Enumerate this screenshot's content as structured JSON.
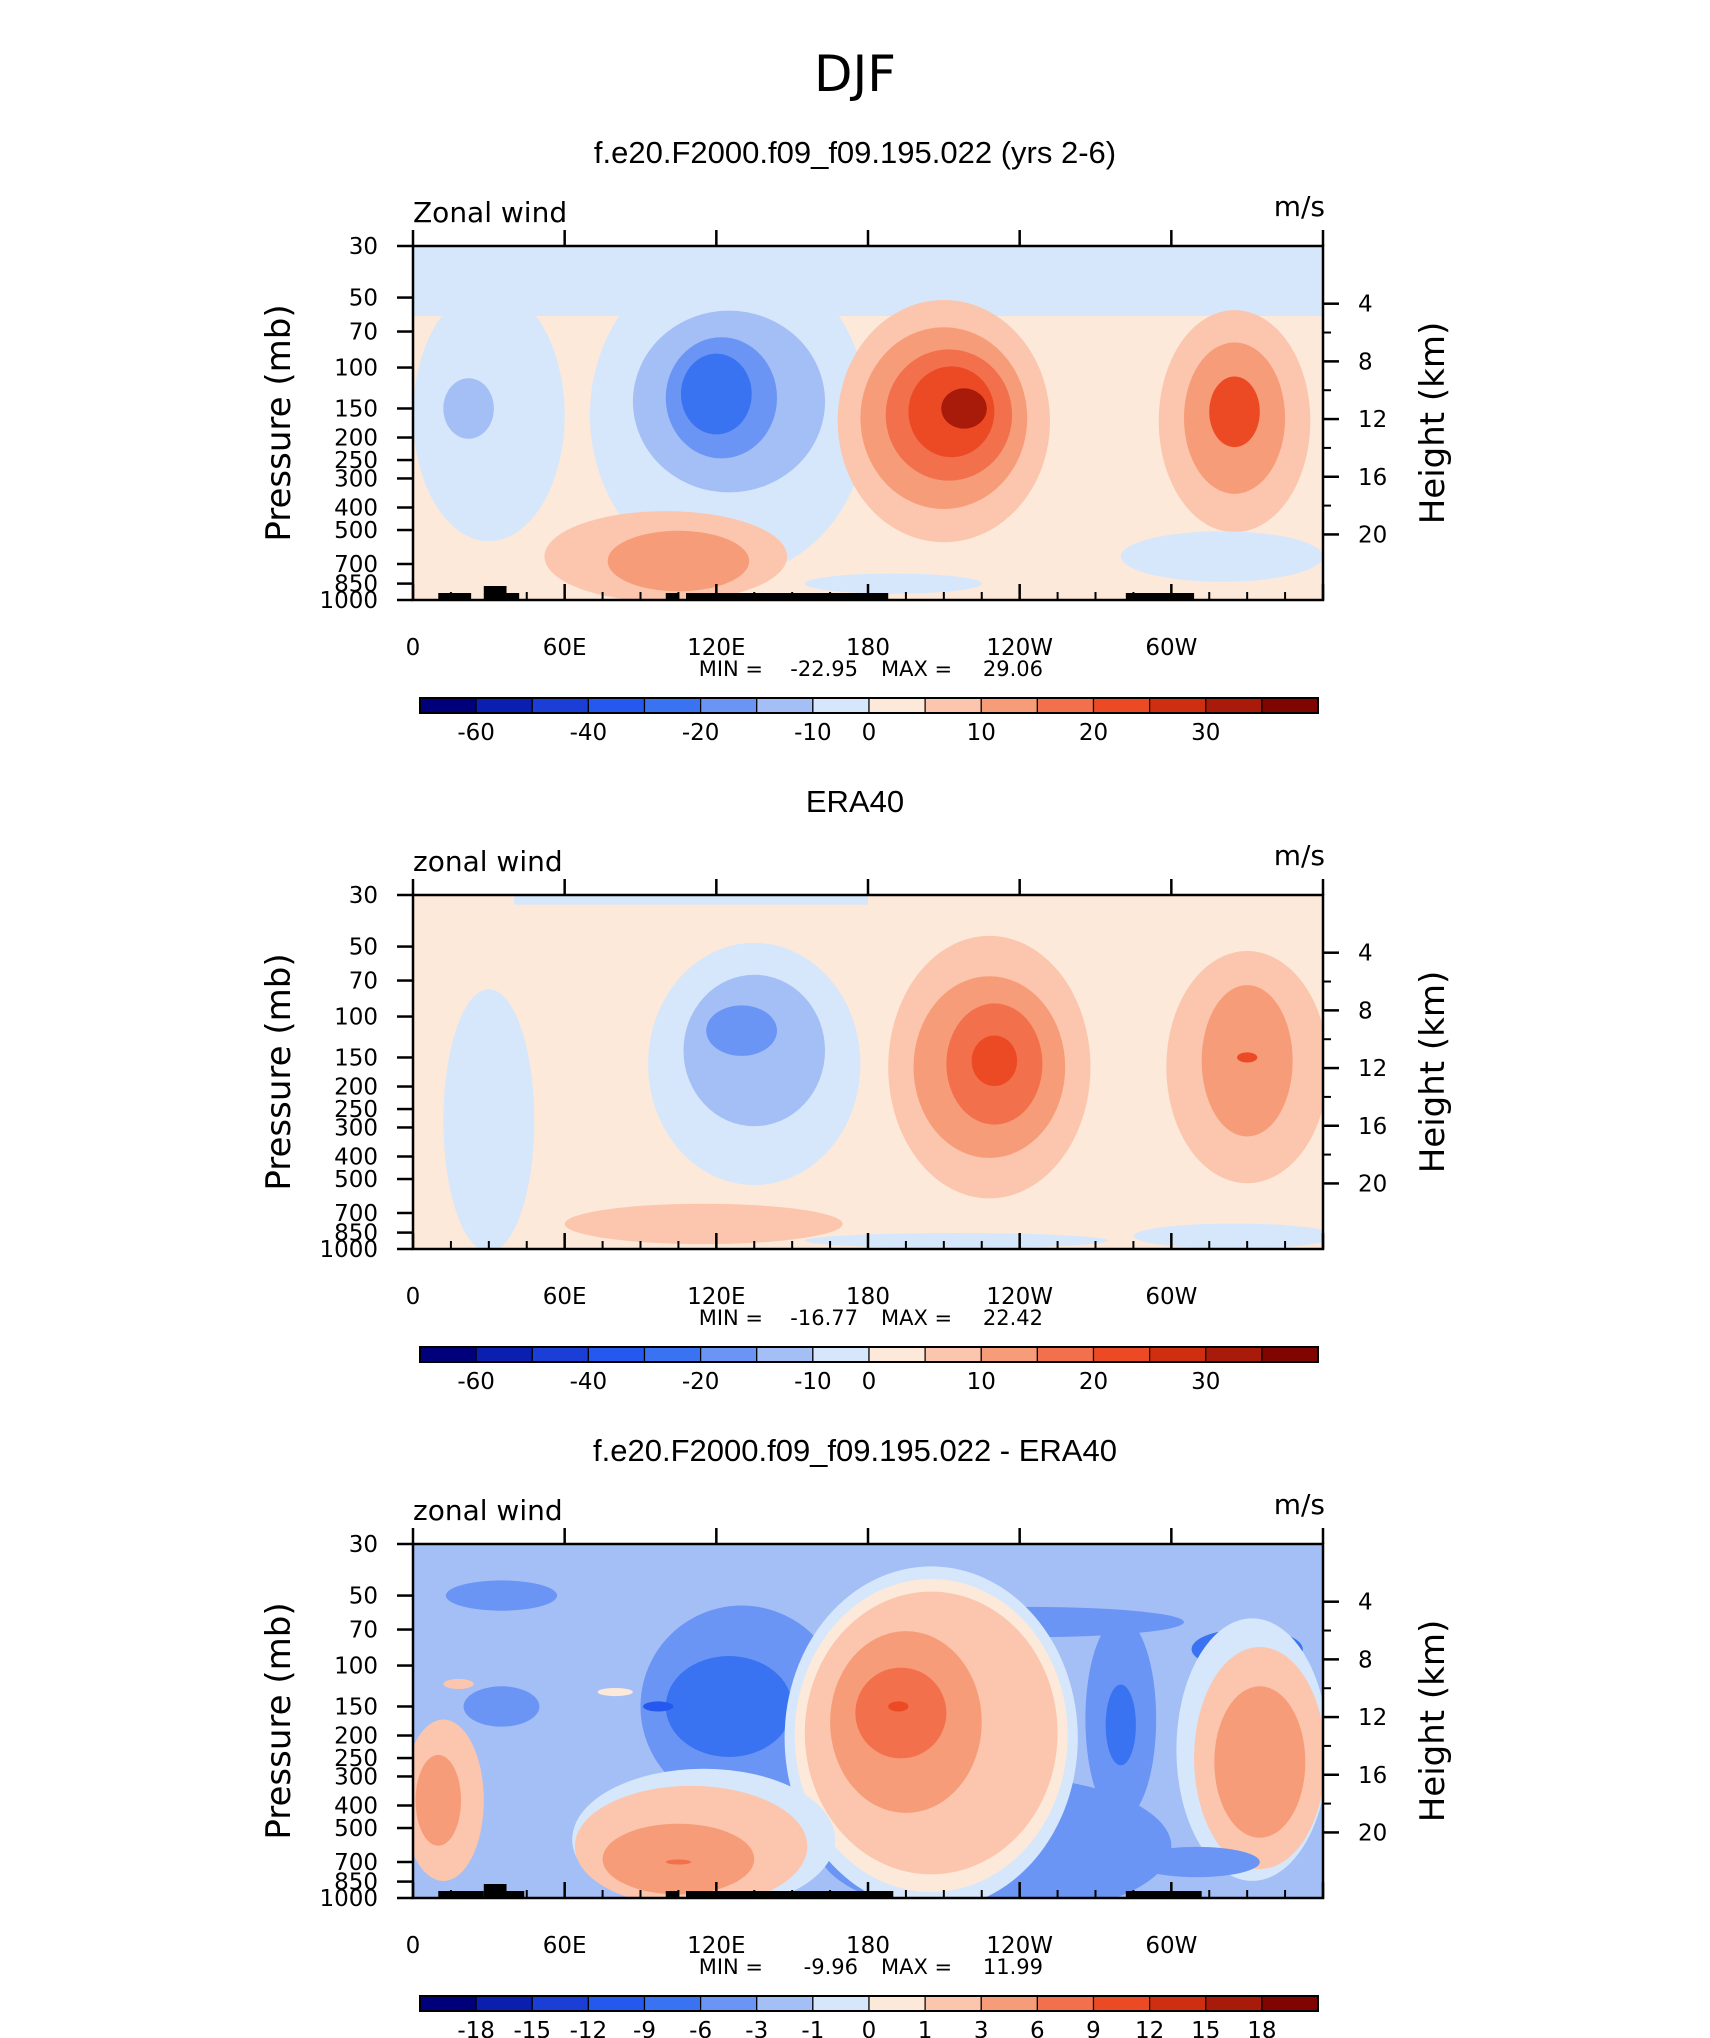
{
  "figure_title": "DJF",
  "chart_data": [
    {
      "type": "heatmap",
      "panel_title": "f.e20.F2000.f09_f09.195.022 (yrs 2-6)",
      "left_label": "Zonal wind",
      "right_label": "m/s",
      "ylabel": "Pressure (mb)",
      "y2label": "Height (km)",
      "x_ticks": [
        "0",
        "60E",
        "120E",
        "180",
        "120W",
        "60W"
      ],
      "y_ticks": [
        "30",
        "50",
        "70",
        "100",
        "150",
        "200",
        "250",
        "300",
        "400",
        "500",
        "700",
        "850",
        "1000"
      ],
      "y2_ticks": [
        "20",
        "16",
        "12",
        "8",
        "4"
      ],
      "stats": {
        "min_label": "MIN =",
        "min": "-22.95",
        "max_label": "MAX =",
        "max": "29.06"
      },
      "colorbar": {
        "tick_labels": [
          "-60",
          "-40",
          "-20",
          "-10",
          "0",
          "10",
          "20",
          "30"
        ],
        "colors": [
          "#00007a",
          "#0a1fb0",
          "#1b3ed6",
          "#2458ee",
          "#3a73f2",
          "#6a95f4",
          "#a4bff6",
          "#d6e7fb",
          "#fde9d9",
          "#fbc6ad",
          "#f79c78",
          "#f2704c",
          "#ec4a24",
          "#d02e10",
          "#a81b0b",
          "#800500"
        ]
      },
      "features": [
        {
          "kind": "bg",
          "color": "#fde9d9"
        },
        {
          "kind": "band",
          "color": "#d6e7fb",
          "x0": 0,
          "x1": 360,
          "p0": 30,
          "p1": 60
        },
        {
          "kind": "blob",
          "color": "#d6e7fb",
          "lon": 125,
          "p": 160,
          "rx": 55,
          "rp": 3.2
        },
        {
          "kind": "blob",
          "color": "#a4bff6",
          "lon": 125,
          "p": 140,
          "rx": 38,
          "rp": 1.8
        },
        {
          "kind": "blob",
          "color": "#6a95f4",
          "lon": 122,
          "p": 135,
          "rx": 22,
          "rp": 1.2
        },
        {
          "kind": "blob",
          "color": "#3a73f2",
          "lon": 120,
          "p": 130,
          "rx": 14,
          "rp": 0.8
        },
        {
          "kind": "blob",
          "color": "#d6e7fb",
          "lon": 30,
          "p": 160,
          "rx": 30,
          "rp": 2.5
        },
        {
          "kind": "blob",
          "color": "#a4bff6",
          "lon": 22,
          "p": 150,
          "rx": 10,
          "rp": 0.6
        },
        {
          "kind": "blob",
          "color": "#fbc6ad",
          "lon": 210,
          "p": 170,
          "rx": 42,
          "rp": 2.4
        },
        {
          "kind": "blob",
          "color": "#f79c78",
          "lon": 210,
          "p": 165,
          "rx": 33,
          "rp": 1.8
        },
        {
          "kind": "blob",
          "color": "#f2704c",
          "lon": 212,
          "p": 160,
          "rx": 25,
          "rp": 1.3
        },
        {
          "kind": "blob",
          "color": "#ec4a24",
          "lon": 213,
          "p": 155,
          "rx": 17,
          "rp": 0.9
        },
        {
          "kind": "blob",
          "color": "#a81b0b",
          "lon": 218,
          "p": 150,
          "rx": 9,
          "rp": 0.4
        },
        {
          "kind": "blob",
          "color": "#fbc6ad",
          "lon": 325,
          "p": 170,
          "rx": 30,
          "rp": 2.2
        },
        {
          "kind": "blob",
          "color": "#f79c78",
          "lon": 325,
          "p": 165,
          "rx": 20,
          "rp": 1.5
        },
        {
          "kind": "blob",
          "color": "#ec4a24",
          "lon": 325,
          "p": 155,
          "rx": 10,
          "rp": 0.7
        },
        {
          "kind": "blob",
          "color": "#fbc6ad",
          "lon": 100,
          "p": 650,
          "rx": 48,
          "rp": 0.9
        },
        {
          "kind": "blob",
          "color": "#f79c78",
          "lon": 105,
          "p": 680,
          "rx": 28,
          "rp": 0.6
        },
        {
          "kind": "blob",
          "color": "#d6e7fb",
          "lon": 190,
          "p": 850,
          "rx": 35,
          "rp": 0.2
        },
        {
          "kind": "blob",
          "color": "#d6e7fb",
          "lon": 320,
          "p": 650,
          "rx": 40,
          "rp": 0.5
        }
      ],
      "topography": [
        [
          10,
          23
        ],
        [
          28,
          37
        ],
        [
          37,
          42
        ],
        [
          100,
          105
        ],
        [
          108,
          188
        ],
        [
          282,
          309
        ]
      ]
    },
    {
      "type": "heatmap",
      "panel_title": "ERA40",
      "left_label": "zonal wind",
      "right_label": "m/s",
      "ylabel": "Pressure (mb)",
      "y2label": "Height (km)",
      "x_ticks": [
        "0",
        "60E",
        "120E",
        "180",
        "120W",
        "60W"
      ],
      "y_ticks": [
        "30",
        "50",
        "70",
        "100",
        "150",
        "200",
        "250",
        "300",
        "400",
        "500",
        "700",
        "850",
        "1000"
      ],
      "y2_ticks": [
        "20",
        "16",
        "12",
        "8",
        "4"
      ],
      "stats": {
        "min_label": "MIN =",
        "min": "-16.77",
        "max_label": "MAX =",
        "max": "22.42"
      },
      "colorbar": {
        "tick_labels": [
          "-60",
          "-40",
          "-20",
          "-10",
          "0",
          "10",
          "20",
          "30"
        ],
        "colors": [
          "#00007a",
          "#0a1fb0",
          "#1b3ed6",
          "#2458ee",
          "#3a73f2",
          "#6a95f4",
          "#a4bff6",
          "#d6e7fb",
          "#fde9d9",
          "#fbc6ad",
          "#f79c78",
          "#f2704c",
          "#ec4a24",
          "#d02e10",
          "#a81b0b",
          "#800500"
        ]
      },
      "features": [
        {
          "kind": "bg",
          "color": "#fde9d9"
        },
        {
          "kind": "band",
          "color": "#d6e7fb",
          "x0": 40,
          "x1": 180,
          "p0": 30,
          "p1": 33
        },
        {
          "kind": "blob",
          "color": "#d6e7fb",
          "lon": 135,
          "p": 160,
          "rx": 42,
          "rp": 2.4
        },
        {
          "kind": "blob",
          "color": "#a4bff6",
          "lon": 135,
          "p": 140,
          "rx": 28,
          "rp": 1.5
        },
        {
          "kind": "blob",
          "color": "#6a95f4",
          "lon": 130,
          "p": 115,
          "rx": 14,
          "rp": 0.5
        },
        {
          "kind": "blob",
          "color": "#d6e7fb",
          "lon": 30,
          "p": 280,
          "rx": 18,
          "rp": 2.6
        },
        {
          "kind": "blob",
          "color": "#fbc6ad",
          "lon": 228,
          "p": 165,
          "rx": 40,
          "rp": 2.6
        },
        {
          "kind": "blob",
          "color": "#f79c78",
          "lon": 228,
          "p": 165,
          "rx": 30,
          "rp": 1.8
        },
        {
          "kind": "blob",
          "color": "#f2704c",
          "lon": 230,
          "p": 160,
          "rx": 19,
          "rp": 1.2
        },
        {
          "kind": "blob",
          "color": "#ec4a24",
          "lon": 230,
          "p": 155,
          "rx": 9,
          "rp": 0.5
        },
        {
          "kind": "blob",
          "color": "#fbc6ad",
          "lon": 330,
          "p": 165,
          "rx": 32,
          "rp": 2.3
        },
        {
          "kind": "blob",
          "color": "#f79c78",
          "lon": 330,
          "p": 155,
          "rx": 18,
          "rp": 1.5
        },
        {
          "kind": "blob",
          "color": "#ec4a24",
          "lon": 330,
          "p": 150,
          "rx": 4,
          "rp": 0.1
        },
        {
          "kind": "blob",
          "color": "#fbc6ad",
          "lon": 115,
          "p": 780,
          "rx": 55,
          "rp": 0.4
        },
        {
          "kind": "blob",
          "color": "#d6e7fb",
          "lon": 215,
          "p": 920,
          "rx": 60,
          "rp": 0.15
        },
        {
          "kind": "blob",
          "color": "#d6e7fb",
          "lon": 325,
          "p": 880,
          "rx": 40,
          "rp": 0.25
        }
      ],
      "topography": []
    },
    {
      "type": "heatmap",
      "panel_title": "f.e20.F2000.f09_f09.195.022 - ERA40",
      "left_label": "zonal wind",
      "right_label": "m/s",
      "ylabel": "Pressure (mb)",
      "y2label": "Height (km)",
      "x_ticks": [
        "0",
        "60E",
        "120E",
        "180",
        "120W",
        "60W"
      ],
      "y_ticks": [
        "30",
        "50",
        "70",
        "100",
        "150",
        "200",
        "250",
        "300",
        "400",
        "500",
        "700",
        "850",
        "1000"
      ],
      "y2_ticks": [
        "20",
        "16",
        "12",
        "8",
        "4"
      ],
      "stats": {
        "min_label": "MIN =",
        "min": "-9.96",
        "max_label": "MAX =",
        "max": "11.99"
      },
      "colorbar": {
        "tick_labels": [
          "-18",
          "-15",
          "-12",
          "-9",
          "-6",
          "-3",
          "-1",
          "0",
          "1",
          "3",
          "6",
          "9",
          "12",
          "15",
          "18"
        ],
        "colors": [
          "#00007a",
          "#0a1fb0",
          "#1b3ed6",
          "#2458ee",
          "#3a73f2",
          "#6a95f4",
          "#a4bff6",
          "#d6e7fb",
          "#fde9d9",
          "#fbc6ad",
          "#f79c78",
          "#f2704c",
          "#ec4a24",
          "#d02e10",
          "#a81b0b",
          "#800500"
        ]
      },
      "features": [
        {
          "kind": "bg",
          "color": "#a4bff6"
        },
        {
          "kind": "blob",
          "color": "#6a95f4",
          "lon": 35,
          "p": 50,
          "rx": 22,
          "rp": 0.3
        },
        {
          "kind": "blob",
          "color": "#6a95f4",
          "lon": 130,
          "p": 150,
          "rx": 40,
          "rp": 2.0
        },
        {
          "kind": "blob",
          "color": "#3a73f2",
          "lon": 125,
          "p": 150,
          "rx": 25,
          "rp": 1.0
        },
        {
          "kind": "blob",
          "color": "#2458ee",
          "lon": 97,
          "p": 150,
          "rx": 6,
          "rp": 0.1
        },
        {
          "kind": "blob",
          "color": "#6a95f4",
          "lon": 245,
          "p": 65,
          "rx": 60,
          "rp": 0.3
        },
        {
          "kind": "blob",
          "color": "#3a73f2",
          "lon": 230,
          "p": 65,
          "rx": 9,
          "rp": 0.15
        },
        {
          "kind": "blob",
          "color": "#3a73f2",
          "lon": 330,
          "p": 85,
          "rx": 22,
          "rp": 0.4
        },
        {
          "kind": "blob",
          "color": "#6a95f4",
          "lon": 230,
          "p": 600,
          "rx": 70,
          "rp": 1.4
        },
        {
          "kind": "blob",
          "color": "#d6e7fb",
          "lon": 205,
          "p": 205,
          "rx": 58,
          "rp": 3.4
        },
        {
          "kind": "blob",
          "color": "#fde9d9",
          "lon": 205,
          "p": 200,
          "rx": 54,
          "rp": 3.1
        },
        {
          "kind": "blob",
          "color": "#fbc6ad",
          "lon": 205,
          "p": 195,
          "rx": 50,
          "rp": 2.8
        },
        {
          "kind": "blob",
          "color": "#f79c78",
          "lon": 195,
          "p": 175,
          "rx": 30,
          "rp": 1.8
        },
        {
          "kind": "blob",
          "color": "#f2704c",
          "lon": 193,
          "p": 160,
          "rx": 18,
          "rp": 0.9
        },
        {
          "kind": "blob",
          "color": "#ec4a24",
          "lon": 192,
          "p": 150,
          "rx": 4,
          "rp": 0.1
        },
        {
          "kind": "blob",
          "color": "#6a95f4",
          "lon": 280,
          "p": 170,
          "rx": 14,
          "rp": 2.0
        },
        {
          "kind": "blob",
          "color": "#3a73f2",
          "lon": 280,
          "p": 180,
          "rx": 6,
          "rp": 0.8
        },
        {
          "kind": "blob",
          "color": "#d6e7fb",
          "lon": 332,
          "p": 230,
          "rx": 30,
          "rp": 2.6
        },
        {
          "kind": "blob",
          "color": "#fbc6ad",
          "lon": 335,
          "p": 250,
          "rx": 26,
          "rp": 2.2
        },
        {
          "kind": "blob",
          "color": "#f79c78",
          "lon": 335,
          "p": 260,
          "rx": 18,
          "rp": 1.5
        },
        {
          "kind": "blob",
          "color": "#fbc6ad",
          "lon": 12,
          "p": 380,
          "rx": 16,
          "rp": 1.6
        },
        {
          "kind": "blob",
          "color": "#f79c78",
          "lon": 10,
          "p": 380,
          "rx": 9,
          "rp": 0.9
        },
        {
          "kind": "blob",
          "color": "#d6e7fb",
          "lon": 115,
          "p": 560,
          "rx": 52,
          "rp": 1.4
        },
        {
          "kind": "blob",
          "color": "#fbc6ad",
          "lon": 110,
          "p": 600,
          "rx": 46,
          "rp": 1.2
        },
        {
          "kind": "blob",
          "color": "#f79c78",
          "lon": 105,
          "p": 680,
          "rx": 30,
          "rp": 0.7
        },
        {
          "kind": "blob",
          "color": "#f2704c",
          "lon": 105,
          "p": 700,
          "rx": 5,
          "rp": 0.05
        },
        {
          "kind": "blob",
          "color": "#fbc6ad",
          "lon": 18,
          "p": 120,
          "rx": 6,
          "rp": 0.1
        },
        {
          "kind": "blob",
          "color": "#fde9d9",
          "lon": 80,
          "p": 130,
          "rx": 7,
          "rp": 0.08
        },
        {
          "kind": "blob",
          "color": "#6a95f4",
          "lon": 310,
          "p": 700,
          "rx": 25,
          "rp": 0.3
        },
        {
          "kind": "blob",
          "color": "#6a95f4",
          "lon": 35,
          "p": 150,
          "rx": 15,
          "rp": 0.4
        }
      ],
      "topography": [
        [
          10,
          28
        ],
        [
          28,
          37
        ],
        [
          37,
          44
        ],
        [
          100,
          105
        ],
        [
          108,
          190
        ],
        [
          282,
          312
        ]
      ]
    }
  ]
}
